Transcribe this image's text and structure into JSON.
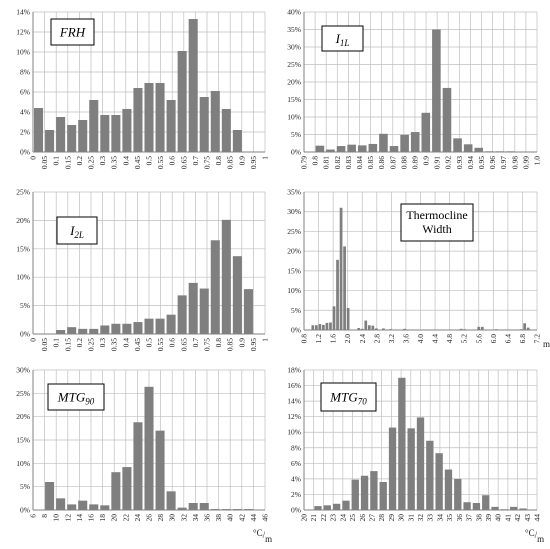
{
  "chart_data": [
    {
      "type": "bar",
      "title": "FRH",
      "title_style": "italic",
      "xlabel": "",
      "ylabel": "",
      "ylim": [
        0,
        0.14
      ],
      "yticks": [
        0,
        0.02,
        0.04,
        0.06,
        0.08,
        0.1,
        0.12,
        0.14
      ],
      "ytick_labels": [
        "0%",
        "2%",
        "4%",
        "6%",
        "8%",
        "10%",
        "12%",
        "14%"
      ],
      "xtick_labels": [
        "0",
        "0.05",
        "0.1",
        "0.15",
        "0.2",
        "0.25",
        "0.3",
        "0.35",
        "0.4",
        "0.45",
        "0.5",
        "0.55",
        "0.6",
        "0.65",
        "0.7",
        "0.75",
        "0.8",
        "0.85",
        "0.9",
        "0.95",
        "1"
      ],
      "categories": [
        "0",
        "0.05",
        "0.1",
        "0.15",
        "0.2",
        "0.25",
        "0.3",
        "0.35",
        "0.4",
        "0.45",
        "0.5",
        "0.55",
        "0.6",
        "0.65",
        "0.7",
        "0.75",
        "0.8",
        "0.85",
        "0.9",
        "0.95",
        "1"
      ],
      "values": [
        0.044,
        0.022,
        0.035,
        0.027,
        0.032,
        0.052,
        0.037,
        0.037,
        0.043,
        0.064,
        0.069,
        0.069,
        0.052,
        0.101,
        0.133,
        0.055,
        0.061,
        0.043,
        0.022,
        0.0,
        0.0
      ],
      "grid": true,
      "bar_color": "#7f7f7f"
    },
    {
      "type": "bar",
      "title": "I1L",
      "title_style": "italic-subscript",
      "xlabel": "",
      "ylabel": "",
      "ylim": [
        0,
        0.4
      ],
      "yticks": [
        0,
        0.05,
        0.1,
        0.15,
        0.2,
        0.25,
        0.3,
        0.35,
        0.4
      ],
      "ytick_labels": [
        "0%",
        "5%",
        "10%",
        "15%",
        "20%",
        "25%",
        "30%",
        "35%",
        "40%"
      ],
      "xtick_labels": [
        "0.79",
        "0.8",
        "0.81",
        "0.82",
        "0.83",
        "0.84",
        "0.85",
        "0.86",
        "0.87",
        "0.88",
        "0.89",
        "0.9",
        "0.91",
        "0.92",
        "0.93",
        "0.94",
        "0.95",
        "0.96",
        "0.97",
        "0.98",
        "0.99",
        "1.0"
      ],
      "categories": [
        "0.79",
        "0.8",
        "0.81",
        "0.82",
        "0.83",
        "0.84",
        "0.85",
        "0.86",
        "0.87",
        "0.88",
        "0.89",
        "0.9",
        "0.91",
        "0.92",
        "0.93",
        "0.94",
        "0.95",
        "0.96",
        "0.97",
        "0.98",
        "0.99",
        "1.0"
      ],
      "values": [
        0.0,
        0.018,
        0.007,
        0.017,
        0.021,
        0.019,
        0.023,
        0.052,
        0.017,
        0.049,
        0.057,
        0.112,
        0.35,
        0.183,
        0.039,
        0.022,
        0.012,
        0.002,
        0.002,
        0.002,
        0.0,
        0.0
      ],
      "grid": true,
      "bar_color": "#7f7f7f"
    },
    {
      "type": "bar",
      "title": "I2L",
      "title_style": "italic-subscript",
      "xlabel": "",
      "ylabel": "",
      "ylim": [
        0,
        0.25
      ],
      "yticks": [
        0,
        0.05,
        0.1,
        0.15,
        0.2,
        0.25
      ],
      "ytick_labels": [
        "0%",
        "5%",
        "10%",
        "15%",
        "20%",
        "25%"
      ],
      "xtick_labels": [
        "0",
        "0.05",
        "0.1",
        "0.15",
        "0.2",
        "0.25",
        "0.3",
        "0.35",
        "0.4",
        "0.45",
        "0.5",
        "0.55",
        "0.6",
        "0.65",
        "0.7",
        "0.75",
        "0.8",
        "0.85",
        "0.9",
        "0.95",
        "1"
      ],
      "categories": [
        "0",
        "0.05",
        "0.1",
        "0.15",
        "0.2",
        "0.25",
        "0.3",
        "0.35",
        "0.4",
        "0.45",
        "0.5",
        "0.55",
        "0.6",
        "0.65",
        "0.7",
        "0.75",
        "0.8",
        "0.85",
        "0.9",
        "0.95",
        "1"
      ],
      "values": [
        0.0,
        0.0,
        0.007,
        0.012,
        0.009,
        0.009,
        0.015,
        0.018,
        0.018,
        0.021,
        0.027,
        0.027,
        0.034,
        0.068,
        0.09,
        0.08,
        0.165,
        0.201,
        0.137,
        0.079,
        0.0
      ],
      "grid": true,
      "bar_color": "#7f7f7f"
    },
    {
      "type": "bar",
      "title": "Thermocline Width",
      "title_lines": [
        "Thermocline",
        "Width"
      ],
      "xlabel": "m",
      "ylabel": "",
      "ylim": [
        0,
        0.35
      ],
      "yticks": [
        0,
        0.05,
        0.1,
        0.15,
        0.2,
        0.25,
        0.3,
        0.35
      ],
      "ytick_labels": [
        "0%",
        "5%",
        "10%",
        "15%",
        "20%",
        "25%",
        "30%",
        "35%"
      ],
      "xtick_labels": [
        "0.8",
        "1.2",
        "1.6",
        "2.0",
        "2.4",
        "2.8",
        "3.2",
        "3.6",
        "4.0",
        "4.4",
        "4.8",
        "5.2",
        "5.6",
        "6.0",
        "6.4",
        "6.8",
        "7.2"
      ],
      "categories": [
        "0.8",
        "0.9",
        "1.0",
        "1.1",
        "1.2",
        "1.3",
        "1.4",
        "1.5",
        "1.6",
        "1.7",
        "1.8",
        "1.9",
        "2.0",
        "2.1",
        "2.2",
        "2.3",
        "2.4",
        "2.5",
        "2.6",
        "2.7",
        "2.8",
        "2.9",
        "3.0",
        "3.1",
        "3.2",
        "3.3",
        "3.4",
        "3.5",
        "3.6",
        "3.7",
        "3.8",
        "3.9",
        "4.0",
        "4.1",
        "4.2",
        "4.3",
        "4.4",
        "4.5",
        "4.6",
        "4.7",
        "4.8",
        "4.9",
        "5.0",
        "5.1",
        "5.2",
        "5.3",
        "5.4",
        "5.5",
        "5.6",
        "5.7",
        "5.8",
        "5.9",
        "6.0",
        "6.1",
        "6.2",
        "6.3",
        "6.4",
        "6.5",
        "6.6",
        "6.7",
        "6.8",
        "6.9",
        "7.0",
        "7.1",
        "7.2",
        "7.3"
      ],
      "values": [
        0.0,
        0.0,
        0.012,
        0.012,
        0.015,
        0.013,
        0.018,
        0.019,
        0.06,
        0.178,
        0.31,
        0.212,
        0.056,
        0.0,
        0.0,
        0.005,
        0.003,
        0.024,
        0.012,
        0.011,
        0.004,
        0.0,
        0.004,
        0.0,
        0.002,
        0.0,
        0.0,
        0.0,
        0.003,
        0.001,
        0.0,
        0.0,
        0.001,
        0.0,
        0.001,
        0.0,
        0.001,
        0.0,
        0.001,
        0.0,
        0.001,
        0.0,
        0.0,
        0.0,
        0.003,
        0.002,
        0.0,
        0.0,
        0.0,
        0.008,
        0.008,
        0.0,
        0.0,
        0.0,
        0.002,
        0.0,
        0.0,
        0.0,
        0.0,
        0.0,
        0.0,
        0.002,
        0.017,
        0.006,
        0.0,
        0.0
      ],
      "grid": true,
      "bar_color": "#7f7f7f"
    },
    {
      "type": "bar",
      "title": "MTG90",
      "title_style": "italic-subscript",
      "xlabel": "°C/m",
      "ylabel": "",
      "ylim": [
        0,
        0.3
      ],
      "yticks": [
        0,
        0.05,
        0.1,
        0.15,
        0.2,
        0.25,
        0.3
      ],
      "ytick_labels": [
        "0%",
        "5%",
        "10%",
        "15%",
        "20%",
        "25%",
        "30%"
      ],
      "xtick_labels": [
        "6",
        "8",
        "10",
        "12",
        "14",
        "16",
        "18",
        "20",
        "22",
        "24",
        "26",
        "28",
        "30",
        "32",
        "34",
        "36",
        "38",
        "40",
        "42",
        "44",
        "46"
      ],
      "categories": [
        "6",
        "8",
        "10",
        "12",
        "14",
        "16",
        "18",
        "20",
        "22",
        "24",
        "26",
        "28",
        "30",
        "32",
        "34",
        "36",
        "38",
        "40",
        "42",
        "44",
        "46"
      ],
      "values": [
        0.0,
        0.06,
        0.025,
        0.012,
        0.02,
        0.012,
        0.01,
        0.081,
        0.092,
        0.188,
        0.264,
        0.17,
        0.04,
        0.005,
        0.015,
        0.015,
        0.002,
        0.002,
        0.002,
        0.002,
        0.0
      ],
      "grid": true,
      "bar_color": "#7f7f7f"
    },
    {
      "type": "bar",
      "title": "MTG70",
      "title_style": "italic-subscript",
      "xlabel": "°C/m",
      "ylabel": "",
      "ylim": [
        0,
        0.18
      ],
      "yticks": [
        0,
        0.02,
        0.04,
        0.06,
        0.08,
        0.1,
        0.12,
        0.14,
        0.16,
        0.18
      ],
      "ytick_labels": [
        "0%",
        "2%",
        "4%",
        "6%",
        "8%",
        "10%",
        "12%",
        "14%",
        "16%",
        "18%"
      ],
      "xtick_labels": [
        "20",
        "21",
        "22",
        "23",
        "24",
        "25",
        "26",
        "27",
        "28",
        "29",
        "30",
        "31",
        "32",
        "33",
        "34",
        "35",
        "36",
        "37",
        "38",
        "39",
        "40",
        "41",
        "42",
        "43",
        "44"
      ],
      "categories": [
        "20",
        "21",
        "22",
        "23",
        "24",
        "25",
        "26",
        "27",
        "28",
        "29",
        "30",
        "31",
        "32",
        "33",
        "34",
        "35",
        "36",
        "37",
        "38",
        "39",
        "40",
        "41",
        "42",
        "43",
        "44"
      ],
      "values": [
        0.0,
        0.005,
        0.006,
        0.008,
        0.012,
        0.039,
        0.044,
        0.05,
        0.036,
        0.106,
        0.17,
        0.105,
        0.119,
        0.089,
        0.073,
        0.052,
        0.04,
        0.01,
        0.009,
        0.019,
        0.004,
        0.001,
        0.004,
        0.002,
        0.0
      ],
      "grid": true,
      "bar_color": "#7f7f7f"
    }
  ]
}
